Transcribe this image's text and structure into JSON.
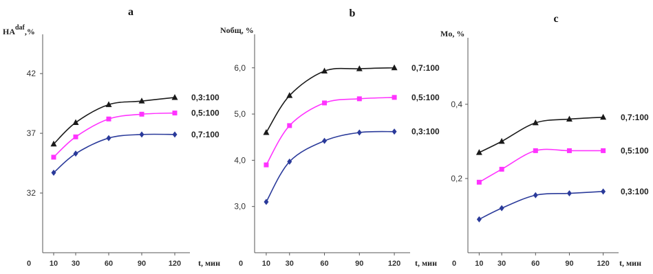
{
  "colors": {
    "black_series": "#1a1a1a",
    "magenta_series": "#ff33ff",
    "blue_series": "#2a3a9a",
    "axis": "#555555",
    "grid": "#cccccc"
  },
  "chart_data": [
    {
      "panel": "a",
      "type": "line",
      "ylabel_main": "HA",
      "ylabel_sup": "daf",
      "ylabel_tail": ",%",
      "xlabel": "t, мин",
      "x_origin_label": "0",
      "x": [
        10,
        30,
        60,
        90,
        120
      ],
      "xlim": [
        0,
        130
      ],
      "ylim": [
        27,
        45
      ],
      "yticks": [
        32,
        37,
        42
      ],
      "ytick_labels": [
        "32",
        "37",
        "42"
      ],
      "series": [
        {
          "name": "0,3:100",
          "color": "black",
          "marker": "triangle",
          "values": [
            36.1,
            37.9,
            39.4,
            39.7,
            40.0
          ]
        },
        {
          "name": "0,5:100",
          "color": "magenta",
          "marker": "square",
          "values": [
            35.0,
            36.7,
            38.2,
            38.6,
            38.7
          ]
        },
        {
          "name": "0,7:100",
          "color": "blue",
          "marker": "diamond",
          "values": [
            33.7,
            35.3,
            36.6,
            36.9,
            36.9
          ]
        }
      ]
    },
    {
      "panel": "b",
      "type": "line",
      "ylabel_main": "Nобщ, %",
      "xlabel": "t, мин",
      "x_origin_label": "0",
      "x": [
        10,
        30,
        60,
        90,
        120
      ],
      "xlim": [
        0,
        130
      ],
      "ylim": [
        2.0,
        6.65
      ],
      "yticks": [
        3.0,
        4.0,
        5.0,
        6.0
      ],
      "ytick_labels": [
        "3,0",
        "4,0",
        "5,0",
        "6,0"
      ],
      "series": [
        {
          "name": "0,7:100",
          "color": "black",
          "marker": "triangle",
          "values": [
            4.6,
            5.4,
            5.93,
            5.98,
            6.0
          ]
        },
        {
          "name": "0,5:100",
          "color": "magenta",
          "marker": "square",
          "values": [
            3.9,
            4.75,
            5.24,
            5.33,
            5.36
          ]
        },
        {
          "name": "0,3:100",
          "color": "blue",
          "marker": "diamond",
          "values": [
            3.1,
            3.97,
            4.42,
            4.6,
            4.62
          ]
        }
      ]
    },
    {
      "panel": "c",
      "type": "line",
      "ylabel_main": "Mо, %",
      "xlabel": "t, мин",
      "x_origin_label": "0",
      "x": [
        10,
        30,
        60,
        90,
        120
      ],
      "xlim": [
        0,
        130
      ],
      "ylim": [
        0.0,
        0.57
      ],
      "yticks": [
        0.2,
        0.4
      ],
      "ytick_labels": [
        "0,2",
        "0,4"
      ],
      "series": [
        {
          "name": "0,7:100",
          "color": "black",
          "marker": "triangle",
          "values": [
            0.27,
            0.3,
            0.35,
            0.36,
            0.365
          ]
        },
        {
          "name": "0,5:100",
          "color": "magenta",
          "marker": "square",
          "values": [
            0.19,
            0.225,
            0.275,
            0.275,
            0.275
          ]
        },
        {
          "name": "0,3:100",
          "color": "blue",
          "marker": "diamond",
          "values": [
            0.09,
            0.12,
            0.155,
            0.16,
            0.165
          ]
        }
      ]
    }
  ]
}
